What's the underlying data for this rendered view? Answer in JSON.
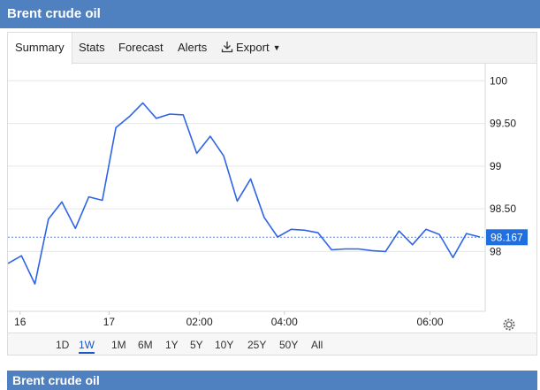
{
  "header": {
    "title": "Brent crude oil"
  },
  "tabs": [
    {
      "label": "Summary"
    },
    {
      "label": "Stats"
    },
    {
      "label": "Forecast"
    },
    {
      "label": "Alerts"
    },
    {
      "label": "Export"
    }
  ],
  "ranges": [
    {
      "label": "1D"
    },
    {
      "label": "1W"
    },
    {
      "label": "1M"
    },
    {
      "label": "6M"
    },
    {
      "label": "1Y"
    },
    {
      "label": "5Y"
    },
    {
      "label": "10Y"
    },
    {
      "label": "25Y"
    },
    {
      "label": "50Y"
    },
    {
      "label": "All"
    }
  ],
  "active_range": "1W",
  "footer": {
    "title": "Brent crude oil"
  },
  "colors": {
    "header": "#4f80c0",
    "line": "#2e64e8",
    "badge": "#1f6fe0"
  },
  "chart_data": {
    "type": "line",
    "ylim": [
      97.3,
      100.2
    ],
    "y_ticks": [
      98,
      98.5,
      99,
      99.5,
      100
    ],
    "y_tick_labels": [
      "98",
      "98.50",
      "99",
      "99.50",
      "100"
    ],
    "x_tick_labels": [
      "16",
      "17",
      "02:00",
      "04:00",
      "06:00"
    ],
    "current_value": 98.167,
    "current_label": "98.167",
    "series": [
      {
        "values": [
          97.86,
          97.95,
          97.62,
          98.38,
          98.58,
          98.27,
          98.64,
          98.6,
          99.45,
          99.58,
          99.74,
          99.56,
          99.61,
          99.6,
          99.15,
          99.35,
          99.12,
          98.59,
          98.85,
          98.4,
          98.17,
          98.26,
          98.25,
          98.22,
          98.02,
          98.03,
          98.03,
          98.01,
          98.0,
          98.24,
          98.08,
          98.26,
          98.2,
          97.93,
          98.21,
          98.17
        ]
      }
    ]
  }
}
